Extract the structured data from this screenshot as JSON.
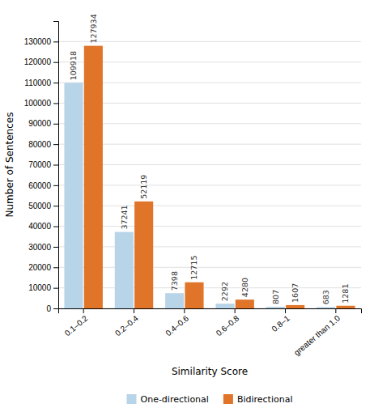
{
  "chart_data": {
    "type": "bar",
    "categories": [
      "0.1–0.2",
      "0.2–0.4",
      "0.4–0.6",
      "0.6–0.8",
      "0.8–1",
      "greater than 1.0"
    ],
    "series": [
      {
        "name": "One-directional",
        "color": "#b8d4e8",
        "values": [
          109918,
          37241,
          7398,
          2292,
          807,
          683
        ]
      },
      {
        "name": "Bidirectional",
        "color": "#e07428",
        "values": [
          127934,
          52119,
          12715,
          4280,
          1607,
          1281
        ]
      }
    ],
    "xlabel": "Similarity Score",
    "ylabel": "Number of Sentences",
    "ylim": [
      0,
      140000
    ],
    "yticks": [
      0,
      10000,
      20000,
      30000,
      40000,
      50000,
      60000,
      70000,
      80000,
      90000,
      100000,
      110000,
      120000,
      130000
    ],
    "grid": true,
    "legend": "bottom",
    "data_labels": true
  }
}
